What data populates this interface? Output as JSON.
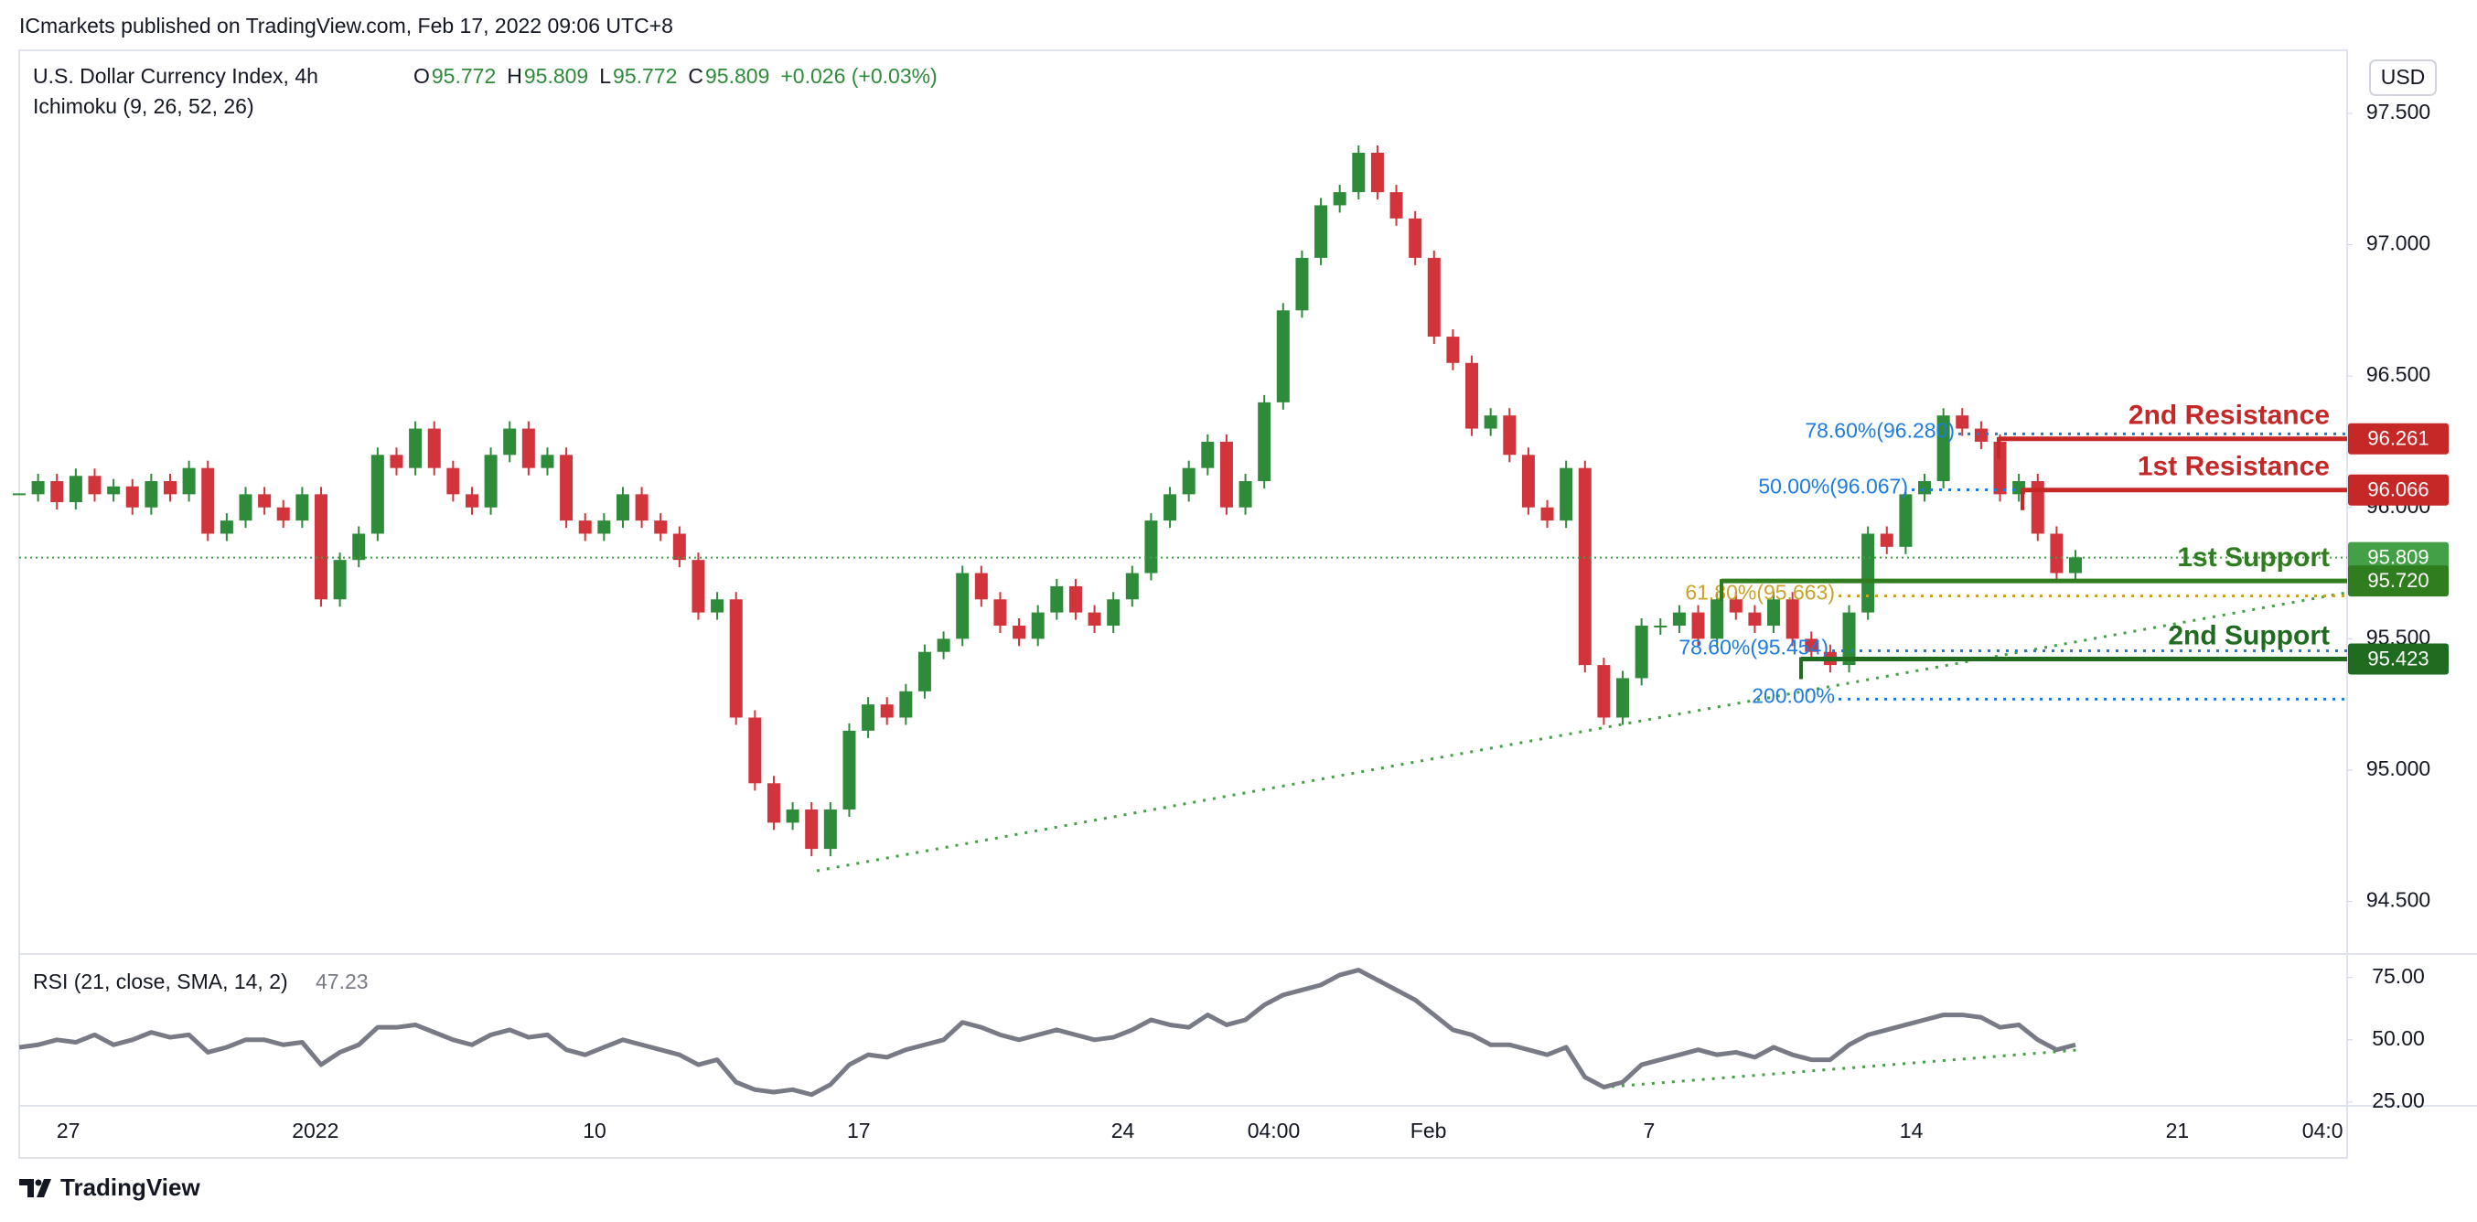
{
  "header": "ICmarkets published on TradingView.com, Feb 17, 2022 09:06 UTC+8",
  "footer": "TradingView",
  "chart_data": [
    {
      "type": "candlestick",
      "currency": "USD",
      "indicator": "Ichimoku (9, 26, 52, 26)",
      "ohlc_labels": [
        "O",
        "H",
        "L",
        "C"
      ],
      "ohlc": [
        95.772,
        95.809,
        95.772,
        95.809
      ],
      "change": "+0.026 (+0.03%)",
      "series": [
        {
          "name": "U.S. Dollar Currency Index, 4h",
          "up_color": "#2e8b3a",
          "down_color": "#d1343b",
          "values": [
            96.05,
            96.1,
            96.02,
            96.12,
            96.05,
            96.08,
            96.0,
            96.1,
            96.05,
            96.15,
            95.9,
            95.95,
            96.05,
            96.0,
            95.95,
            96.05,
            95.65,
            95.8,
            95.9,
            96.2,
            96.15,
            96.3,
            96.15,
            96.05,
            96.0,
            96.2,
            96.3,
            96.15,
            96.2,
            95.95,
            95.9,
            95.95,
            96.05,
            95.95,
            95.9,
            95.8,
            95.6,
            95.65,
            95.2,
            94.95,
            94.8,
            94.85,
            94.7,
            94.85,
            95.15,
            95.25,
            95.2,
            95.3,
            95.45,
            95.5,
            95.75,
            95.65,
            95.55,
            95.5,
            95.6,
            95.7,
            95.6,
            95.55,
            95.65,
            95.75,
            95.95,
            96.05,
            96.15,
            96.25,
            96.0,
            96.1,
            96.4,
            96.75,
            96.95,
            97.15,
            97.2,
            97.35,
            97.2,
            97.1,
            96.95,
            96.65,
            96.55,
            96.3,
            96.35,
            96.2,
            96.0,
            95.95,
            96.15,
            95.4,
            95.2,
            95.35,
            95.55,
            95.55,
            95.6,
            95.5,
            95.65,
            95.6,
            95.55,
            95.65,
            95.5,
            95.45,
            95.4,
            95.6,
            95.9,
            95.85,
            96.05,
            96.1,
            96.35,
            96.3,
            96.25,
            96.05,
            96.1,
            95.9,
            95.75,
            95.81
          ]
        }
      ],
      "categories": [
        null,
        null,
        null,
        null,
        null,
        null,
        null,
        null,
        null,
        null,
        null,
        null,
        null,
        null,
        null,
        null,
        null,
        null,
        null,
        null,
        null,
        null,
        null,
        null,
        null,
        null,
        null,
        null,
        null,
        null,
        null,
        null,
        null,
        null,
        null,
        null,
        null,
        null,
        null,
        null,
        null,
        null,
        null,
        null,
        null,
        null,
        null,
        null,
        null,
        null,
        null,
        null,
        null,
        null,
        null,
        null,
        null,
        null,
        null,
        null,
        null,
        null,
        null,
        null,
        null,
        null,
        null,
        null,
        null,
        null,
        null,
        null,
        null,
        null,
        null,
        null,
        null,
        null,
        null,
        null,
        null,
        null,
        null,
        null,
        null,
        null,
        null,
        null,
        null,
        null,
        null,
        null,
        null,
        null,
        null,
        null,
        null,
        null,
        null,
        null,
        null,
        null,
        null,
        null,
        null,
        null,
        null,
        null,
        null,
        null
      ],
      "xlim": [
        0,
        123.4
      ],
      "xticks": [
        {
          "value": 2.6,
          "label": "27"
        },
        {
          "value": 15.7,
          "label": "2022"
        },
        {
          "value": 30.5,
          "label": "10"
        },
        {
          "value": 44.5,
          "label": "17"
        },
        {
          "value": 58.5,
          "label": "24"
        },
        {
          "value": 66.5,
          "label": "04:00"
        },
        {
          "value": 74.7,
          "label": "Feb"
        },
        {
          "value": 86.4,
          "label": "7"
        },
        {
          "value": 100.3,
          "label": "14"
        },
        {
          "value": 114.4,
          "label": "21"
        },
        {
          "value": 122.1,
          "label": "04:0"
        }
      ],
      "ylim": [
        94.3,
        97.74
      ],
      "yticks": [
        {
          "value": 97.5,
          "label": "97.500"
        },
        {
          "value": 97,
          "label": "97.000"
        },
        {
          "value": 96.5,
          "label": "96.500"
        },
        {
          "value": 96,
          "label": "96.000"
        },
        {
          "value": 95.5,
          "label": "95.500"
        },
        {
          "value": 95,
          "label": "95.000"
        },
        {
          "value": 94.5,
          "label": "94.500"
        }
      ],
      "grid": false,
      "last": {
        "value": 95.809,
        "label": "95.809",
        "color": "#43a047"
      },
      "fibs": [
        {
          "label": "78.60%(96.280)",
          "price": 96.28,
          "color": "#1e7be0"
        },
        {
          "label": "50.00%(96.067)",
          "price": 96.067,
          "color": "#1e7be0"
        },
        {
          "label": "61.80%(95.663)",
          "price": 95.663,
          "color": "#c9a227"
        },
        {
          "label": "78.60%(95.454)",
          "price": 95.454,
          "color": "#1e7be0"
        },
        {
          "label": "200.00%",
          "price": 95.27,
          "color": "#1e7be0"
        }
      ],
      "levels": [
        {
          "label": "2nd Resistance",
          "price": {
            "value": 96.261,
            "label": "96.261"
          },
          "color": "#c62828"
        },
        {
          "label": "1st Resistance",
          "price": {
            "value": 96.066,
            "label": "96.066"
          },
          "color": "#c62828"
        },
        {
          "label": "1st Support",
          "price": {
            "value": 95.72,
            "label": "95.720"
          },
          "color": "#2f7d1f"
        },
        {
          "label": "2nd Support",
          "price": {
            "value": 95.423,
            "label": "95.423"
          },
          "color": "#1f6b1f"
        }
      ]
    },
    {
      "type": "line",
      "title": "RSI (21, close, SMA, 14, 2)",
      "last_value": 47.23,
      "series": [
        {
          "color": "#787b86",
          "values": [
            47,
            48,
            50,
            49,
            52,
            48,
            50,
            53,
            51,
            52,
            45,
            47,
            50,
            50,
            48,
            49,
            40,
            45,
            48,
            55,
            55,
            56,
            53,
            50,
            48,
            52,
            54,
            51,
            52,
            46,
            44,
            47,
            50,
            48,
            46,
            44,
            40,
            42,
            33,
            30,
            29,
            30,
            28,
            32,
            40,
            44,
            43,
            46,
            48,
            50,
            57,
            55,
            52,
            50,
            52,
            54,
            52,
            50,
            51,
            54,
            58,
            56,
            55,
            60,
            56,
            58,
            64,
            68,
            70,
            72,
            76,
            78,
            74,
            70,
            66,
            60,
            54,
            52,
            48,
            48,
            46,
            44,
            47,
            35,
            31,
            33,
            40,
            42,
            44,
            46,
            44,
            45,
            43,
            47,
            44,
            42,
            42,
            48,
            52,
            54,
            56,
            58,
            60,
            60,
            59,
            55,
            56,
            50,
            46,
            48
          ]
        }
      ],
      "ylim": [
        23.5,
        83.7
      ],
      "yticks": [
        {
          "value": 75,
          "label": "75.00"
        },
        {
          "value": 50,
          "label": "50.00"
        },
        {
          "value": 25,
          "label": "25.00"
        }
      ]
    }
  ]
}
